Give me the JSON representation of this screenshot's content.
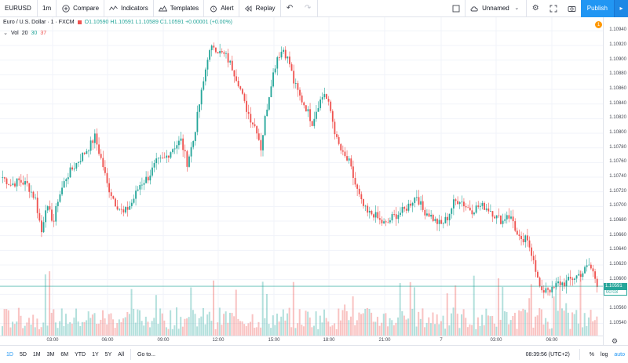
{
  "toolbar": {
    "symbol": "EURUSD",
    "interval": "1m",
    "compare": "Compare",
    "indicators": "Indicators",
    "templates": "Templates",
    "alert": "Alert",
    "replay": "Replay",
    "layout_name": "Unnamed",
    "publish": "Publish"
  },
  "legend": {
    "title": "Euro / U.S. Dollar · 1 · FXCM",
    "ohlc": "O1.10590  H1.10591  L1.10589  C1.10591  +0.00001  (+0.00%)",
    "vol_label": "Vol",
    "vol_20": "20",
    "vol_30": "30",
    "vol_37": "37"
  },
  "price_axis": {
    "labels": [
      "1.10940",
      "1.10920",
      "1.10900",
      "1.10880",
      "1.10860",
      "1.10840",
      "1.10820",
      "1.10800",
      "1.10780",
      "1.10760",
      "1.10740",
      "1.10720",
      "1.10700",
      "1.10680",
      "1.10660",
      "1.10640",
      "1.10620",
      "1.10600",
      "1.10580",
      "1.10560",
      "1.10540"
    ],
    "current_price": "1.10591",
    "countdown": "00:03",
    "alert_badge": "1"
  },
  "time_axis": {
    "labels": [
      "03:00",
      "06:00",
      "09:00",
      "12:00",
      "15:00",
      "18:00",
      "21:00",
      "7",
      "03:00",
      "06:00"
    ]
  },
  "bottombar": {
    "ranges": [
      "1D",
      "5D",
      "1M",
      "3M",
      "6M",
      "YTD",
      "1Y",
      "5Y",
      "All"
    ],
    "goto": "Go to...",
    "clock": "08:39:56 (UTC+2)",
    "percent": "%",
    "log": "log",
    "auto": "auto"
  },
  "chart_data": {
    "type": "candlestick",
    "ylim": [
      1.1053,
      1.1095
    ],
    "up_color": "#26a69a",
    "down_color": "#ef5350",
    "anchors": [
      [
        0,
        1.1074
      ],
      [
        4,
        1.1073
      ],
      [
        8,
        1.10735
      ],
      [
        12,
        1.1073
      ],
      [
        16,
        1.1071
      ],
      [
        18,
        1.1068
      ],
      [
        19,
        1.10665
      ],
      [
        21,
        1.107
      ],
      [
        25,
        1.1068
      ],
      [
        27,
        1.1071
      ],
      [
        31,
        1.1074
      ],
      [
        35,
        1.10755
      ],
      [
        39,
        1.1077
      ],
      [
        43,
        1.10785
      ],
      [
        45,
        1.10795
      ],
      [
        47,
        1.10775
      ],
      [
        49,
        1.10755
      ],
      [
        51,
        1.1073
      ],
      [
        55,
        1.10705
      ],
      [
        59,
        1.1069
      ],
      [
        63,
        1.10705
      ],
      [
        67,
        1.1073
      ],
      [
        71,
        1.1074
      ],
      [
        75,
        1.1076
      ],
      [
        79,
        1.10765
      ],
      [
        83,
        1.1078
      ],
      [
        87,
        1.1079
      ],
      [
        90,
        1.1076
      ],
      [
        93,
        1.1079
      ],
      [
        96,
        1.1084
      ],
      [
        98,
        1.1087
      ],
      [
        100,
        1.10905
      ],
      [
        103,
        1.1092
      ],
      [
        106,
        1.1091
      ],
      [
        109,
        1.10905
      ],
      [
        112,
        1.1089
      ],
      [
        115,
        1.1087
      ],
      [
        118,
        1.1084
      ],
      [
        121,
        1.1082
      ],
      [
        124,
        1.10805
      ],
      [
        126,
        1.1078
      ],
      [
        128,
        1.1082
      ],
      [
        131,
        1.1087
      ],
      [
        134,
        1.10905
      ],
      [
        137,
        1.10915
      ],
      [
        140,
        1.10895
      ],
      [
        142,
        1.1087
      ],
      [
        145,
        1.1085
      ],
      [
        148,
        1.10835
      ],
      [
        151,
        1.10815
      ],
      [
        154,
        1.1084
      ],
      [
        157,
        1.10855
      ],
      [
        160,
        1.1083
      ],
      [
        163,
        1.1079
      ],
      [
        166,
        1.1077
      ],
      [
        169,
        1.1076
      ],
      [
        172,
        1.1073
      ],
      [
        175,
        1.10705
      ],
      [
        178,
        1.1069
      ],
      [
        181,
        1.1069
      ],
      [
        184,
        1.1068
      ],
      [
        187,
        1.10675
      ],
      [
        190,
        1.10685
      ],
      [
        193,
        1.1069
      ],
      [
        196,
        1.10695
      ],
      [
        199,
        1.10705
      ],
      [
        202,
        1.10715
      ],
      [
        205,
        1.10695
      ],
      [
        208,
        1.1069
      ],
      [
        211,
        1.1068
      ],
      [
        214,
        1.10675
      ],
      [
        217,
        1.10685
      ],
      [
        220,
        1.10705
      ],
      [
        223,
        1.1071
      ],
      [
        226,
        1.107
      ],
      [
        229,
        1.10695
      ],
      [
        232,
        1.107
      ],
      [
        235,
        1.107
      ],
      [
        238,
        1.10695
      ],
      [
        241,
        1.10685
      ],
      [
        244,
        1.1068
      ],
      [
        246,
        1.1069
      ],
      [
        249,
        1.1068
      ],
      [
        251,
        1.1066
      ],
      [
        253,
        1.1065
      ],
      [
        255,
        1.10655
      ],
      [
        257,
        1.10645
      ],
      [
        259,
        1.1063
      ],
      [
        261,
        1.106
      ],
      [
        263,
        1.1058
      ],
      [
        265,
        1.1059
      ],
      [
        268,
        1.10585
      ],
      [
        271,
        1.10595
      ],
      [
        274,
        1.10595
      ],
      [
        277,
        1.106
      ],
      [
        280,
        1.10605
      ],
      [
        283,
        1.1061
      ],
      [
        286,
        1.1062
      ],
      [
        288,
        1.1061
      ],
      [
        290,
        1.10595
      ]
    ],
    "bar_count": 291
  }
}
